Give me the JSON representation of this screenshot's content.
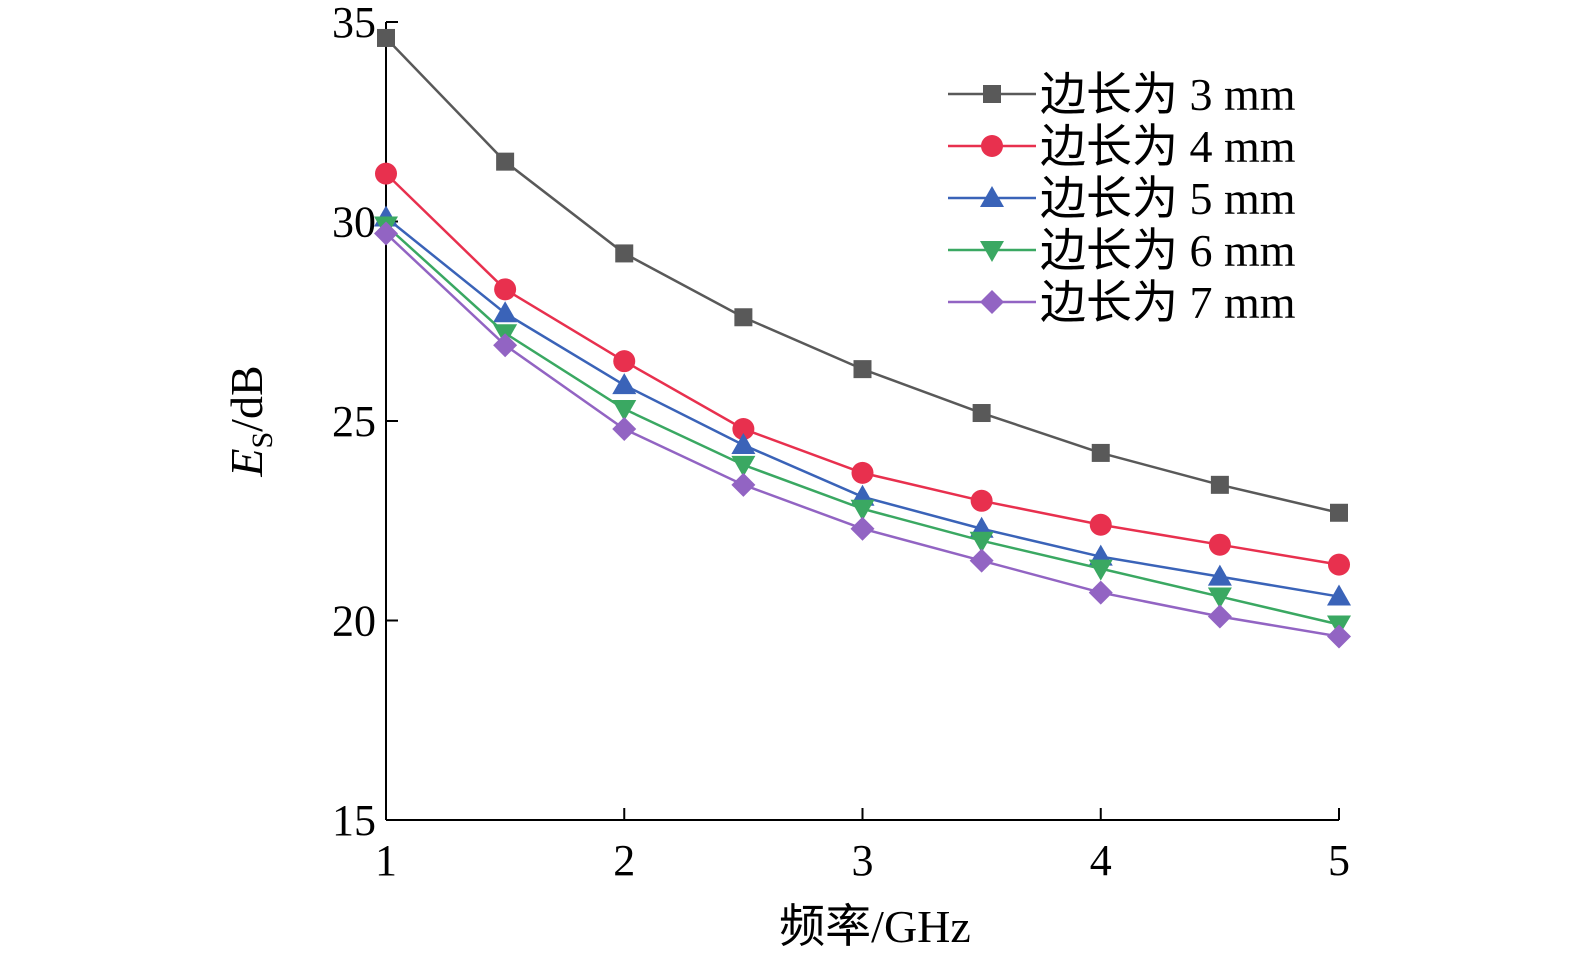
{
  "chart_data": {
    "type": "line",
    "title": "",
    "xlabel": "频率/GHz",
    "ylabel": {
      "main": "E",
      "sub": "S",
      "suffix": "/dB"
    },
    "xlim": [
      1,
      5
    ],
    "ylim": [
      15,
      35
    ],
    "xticks": [
      "1",
      "2",
      "3",
      "4",
      "5"
    ],
    "yticks": [
      "15",
      "20",
      "25",
      "30",
      "35"
    ],
    "grid": false,
    "legend_position": "top-right",
    "x": [
      1,
      1.5,
      2,
      2.5,
      3,
      3.5,
      4,
      4.5,
      5
    ],
    "series": [
      {
        "name": "边长为 3 mm",
        "color": "#595959",
        "marker": "square",
        "values": [
          34.6,
          31.5,
          29.2,
          27.6,
          26.3,
          25.2,
          24.2,
          23.4,
          22.7
        ]
      },
      {
        "name": "边长为 4 mm",
        "color": "#e8304e",
        "marker": "circle",
        "values": [
          31.2,
          28.3,
          26.5,
          24.8,
          23.7,
          23.0,
          22.4,
          21.9,
          21.4
        ]
      },
      {
        "name": "边长为 5 mm",
        "color": "#3a63b8",
        "marker": "triangle-up",
        "values": [
          30.1,
          27.7,
          25.9,
          24.4,
          23.1,
          22.3,
          21.6,
          21.1,
          20.6
        ]
      },
      {
        "name": "边长为 6 mm",
        "color": "#3aa862",
        "marker": "triangle-down",
        "values": [
          29.9,
          27.2,
          25.3,
          23.9,
          22.8,
          22.0,
          21.3,
          20.6,
          19.9
        ]
      },
      {
        "name": "边长为 7 mm",
        "color": "#9264c3",
        "marker": "diamond",
        "values": [
          29.7,
          26.9,
          24.8,
          23.4,
          22.3,
          21.5,
          20.7,
          20.1,
          19.6
        ]
      }
    ]
  }
}
